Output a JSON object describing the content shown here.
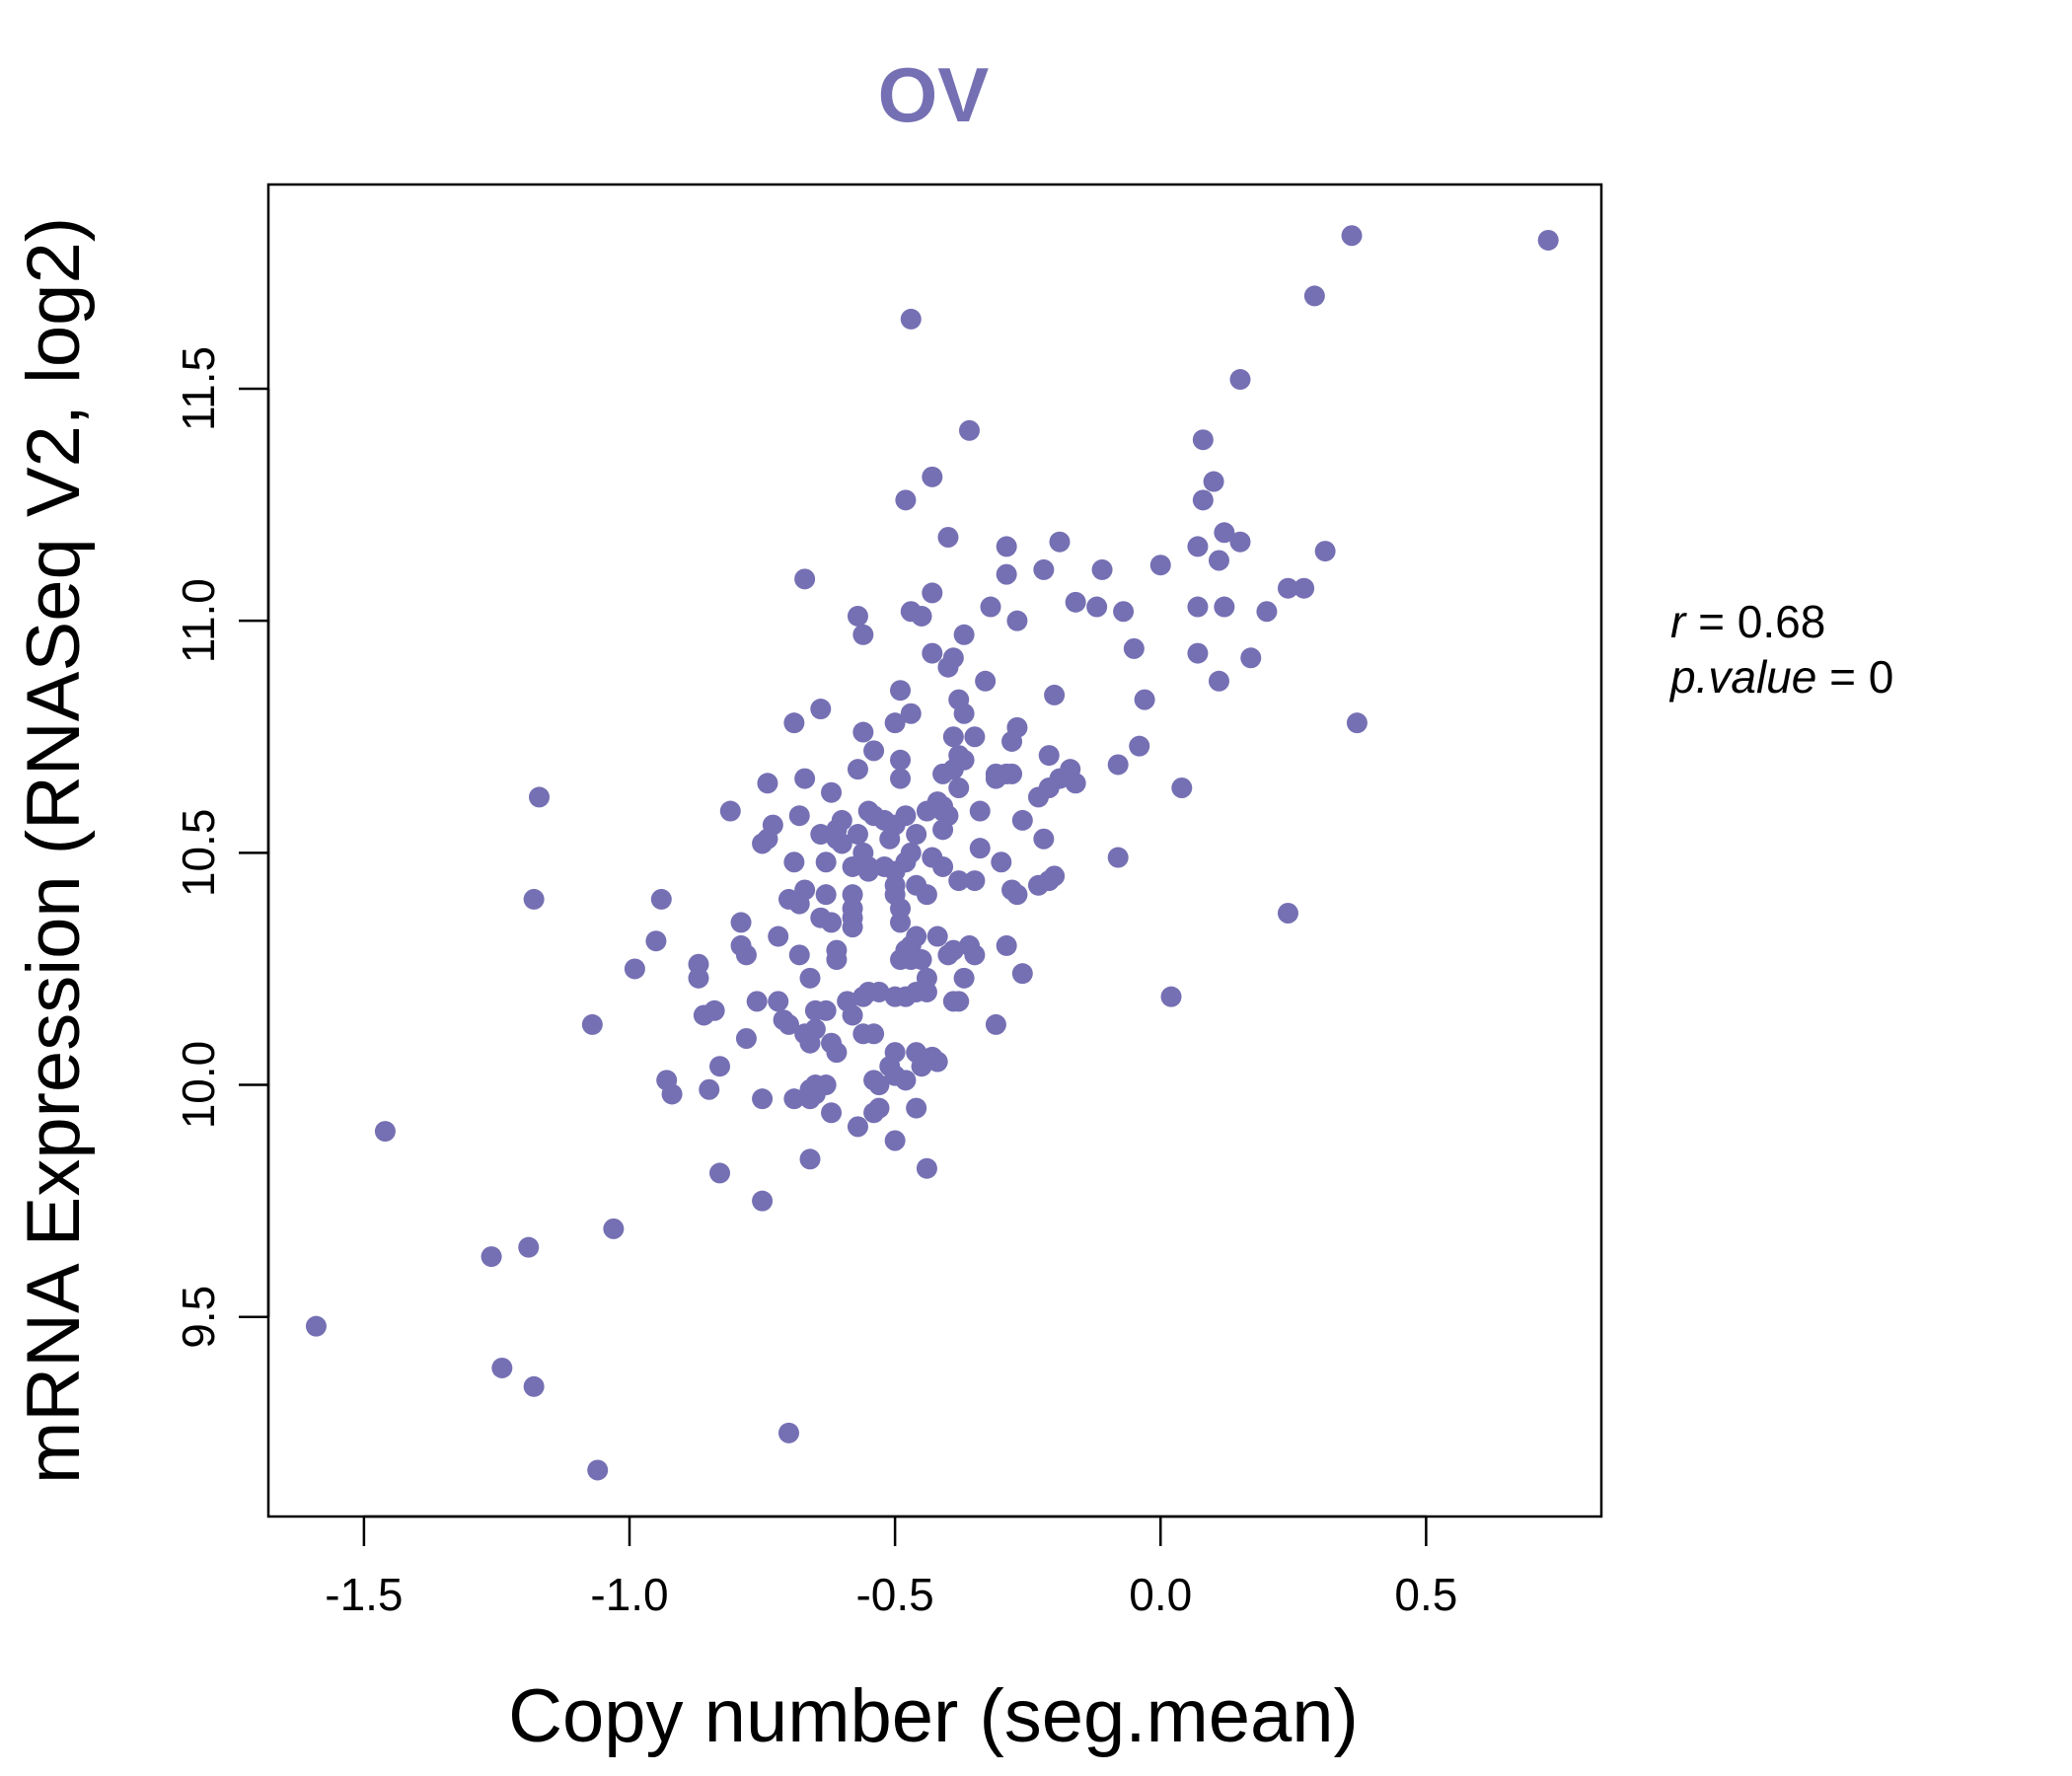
{
  "chart_data": {
    "type": "scatter",
    "title": "OV",
    "xlabel": "Copy number (seg.mean)",
    "ylabel": "mRNA Expression (RNASeq V2, log2)",
    "xlim": [
      -1.68,
      0.83
    ],
    "ylim": [
      9.07,
      11.94
    ],
    "xticks": [
      -1.5,
      -1.0,
      -0.5,
      0.0,
      0.5
    ],
    "xtick_labels": [
      "-1.5",
      "-1.0",
      "-0.5",
      "0.0",
      "0.5"
    ],
    "yticks": [
      9.5,
      10.0,
      10.5,
      11.0,
      11.5
    ],
    "ytick_labels": [
      "9.5",
      "10.0",
      "10.5",
      "11.0",
      "11.5"
    ],
    "point_color": "#7570b3",
    "grid": false,
    "annotation": {
      "r_label": "r",
      "r_value": "0.68",
      "p_label": "p.value",
      "p_value": "0"
    },
    "points": [
      [
        -1.59,
        9.48
      ],
      [
        -1.46,
        9.9
      ],
      [
        -1.26,
        9.63
      ],
      [
        -1.24,
        9.39
      ],
      [
        -1.19,
        9.65
      ],
      [
        -1.18,
        9.35
      ],
      [
        -1.18,
        10.4
      ],
      [
        -1.17,
        10.62
      ],
      [
        -1.06,
        9.17
      ],
      [
        -1.07,
        10.13
      ],
      [
        -1.03,
        9.69
      ],
      [
        -0.99,
        10.25
      ],
      [
        -0.95,
        10.31
      ],
      [
        -0.94,
        10.4
      ],
      [
        -0.93,
        10.01
      ],
      [
        -0.92,
        9.98
      ],
      [
        -0.87,
        10.26
      ],
      [
        -0.87,
        10.23
      ],
      [
        -0.86,
        10.15
      ],
      [
        -0.85,
        9.99
      ],
      [
        -0.84,
        10.16
      ],
      [
        -0.83,
        9.81
      ],
      [
        -0.83,
        10.04
      ],
      [
        -0.81,
        10.59
      ],
      [
        -0.79,
        10.35
      ],
      [
        -0.79,
        10.3
      ],
      [
        -0.78,
        10.28
      ],
      [
        -0.78,
        10.1
      ],
      [
        -0.76,
        10.18
      ],
      [
        -0.75,
        10.52
      ],
      [
        -0.75,
        9.97
      ],
      [
        -0.75,
        9.75
      ],
      [
        -0.74,
        10.53
      ],
      [
        -0.74,
        10.65
      ],
      [
        -0.73,
        10.56
      ],
      [
        -0.72,
        10.18
      ],
      [
        -0.72,
        10.32
      ],
      [
        -0.71,
        10.14
      ],
      [
        -0.7,
        10.4
      ],
      [
        -0.7,
        10.13
      ],
      [
        -0.7,
        9.25
      ],
      [
        -0.69,
        10.48
      ],
      [
        -0.69,
        10.78
      ],
      [
        -0.69,
        9.97
      ],
      [
        -0.68,
        10.39
      ],
      [
        -0.68,
        10.58
      ],
      [
        -0.68,
        10.28
      ],
      [
        -0.67,
        10.66
      ],
      [
        -0.67,
        10.42
      ],
      [
        -0.67,
        10.11
      ],
      [
        -0.67,
        11.09
      ],
      [
        -0.66,
        9.97
      ],
      [
        -0.66,
        9.99
      ],
      [
        -0.66,
        10.09
      ],
      [
        -0.66,
        10.23
      ],
      [
        -0.66,
        9.84
      ],
      [
        -0.65,
        10.0
      ],
      [
        -0.65,
        10.12
      ],
      [
        -0.65,
        10.16
      ],
      [
        -0.65,
        9.98
      ],
      [
        -0.64,
        10.81
      ],
      [
        -0.64,
        10.54
      ],
      [
        -0.64,
        10.36
      ],
      [
        -0.63,
        10.41
      ],
      [
        -0.63,
        10.16
      ],
      [
        -0.63,
        10.0
      ],
      [
        -0.63,
        10.48
      ],
      [
        -0.62,
        10.35
      ],
      [
        -0.62,
        10.09
      ],
      [
        -0.62,
        10.63
      ],
      [
        -0.62,
        9.94
      ],
      [
        -0.61,
        10.53
      ],
      [
        -0.61,
        10.55
      ],
      [
        -0.61,
        10.07
      ],
      [
        -0.61,
        10.29
      ],
      [
        -0.61,
        10.27
      ],
      [
        -0.6,
        10.57
      ],
      [
        -0.6,
        10.52
      ],
      [
        -0.59,
        10.18
      ],
      [
        -0.58,
        10.36
      ],
      [
        -0.58,
        10.41
      ],
      [
        -0.58,
        10.34
      ],
      [
        -0.58,
        10.15
      ],
      [
        -0.58,
        10.47
      ],
      [
        -0.58,
        10.38
      ],
      [
        -0.57,
        10.54
      ],
      [
        -0.57,
        9.91
      ],
      [
        -0.57,
        11.01
      ],
      [
        -0.57,
        10.68
      ],
      [
        -0.56,
        10.5
      ],
      [
        -0.56,
        10.19
      ],
      [
        -0.56,
        10.11
      ],
      [
        -0.56,
        10.76
      ],
      [
        -0.56,
        10.97
      ],
      [
        -0.55,
        10.47
      ],
      [
        -0.55,
        10.59
      ],
      [
        -0.55,
        10.2
      ],
      [
        -0.55,
        10.46
      ],
      [
        -0.54,
        10.72
      ],
      [
        -0.54,
        10.11
      ],
      [
        -0.54,
        10.01
      ],
      [
        -0.54,
        9.94
      ],
      [
        -0.54,
        10.58
      ],
      [
        -0.53,
        10.2
      ],
      [
        -0.53,
        9.95
      ],
      [
        -0.53,
        10.0
      ],
      [
        -0.52,
        10.57
      ],
      [
        -0.52,
        10.47
      ],
      [
        -0.51,
        10.53
      ],
      [
        -0.51,
        10.04
      ],
      [
        -0.5,
        10.07
      ],
      [
        -0.5,
        10.19
      ],
      [
        -0.5,
        10.43
      ],
      [
        -0.5,
        10.46
      ],
      [
        -0.5,
        10.78
      ],
      [
        -0.5,
        10.41
      ],
      [
        -0.5,
        9.88
      ],
      [
        -0.5,
        10.02
      ],
      [
        -0.5,
        10.56
      ],
      [
        -0.49,
        10.85
      ],
      [
        -0.49,
        10.38
      ],
      [
        -0.49,
        10.27
      ],
      [
        -0.49,
        10.35
      ],
      [
        -0.49,
        10.66
      ],
      [
        -0.49,
        10.7
      ],
      [
        -0.48,
        10.19
      ],
      [
        -0.48,
        10.48
      ],
      [
        -0.48,
        10.58
      ],
      [
        -0.48,
        11.26
      ],
      [
        -0.48,
        10.29
      ],
      [
        -0.48,
        10.01
      ],
      [
        -0.47,
        11.02
      ],
      [
        -0.47,
        11.65
      ],
      [
        -0.47,
        10.27
      ],
      [
        -0.47,
        10.5
      ],
      [
        -0.47,
        10.8
      ],
      [
        -0.47,
        10.3
      ],
      [
        -0.46,
        10.2
      ],
      [
        -0.46,
        10.54
      ],
      [
        -0.46,
        10.43
      ],
      [
        -0.46,
        10.32
      ],
      [
        -0.46,
        9.95
      ],
      [
        -0.46,
        10.07
      ],
      [
        -0.45,
        11.01
      ],
      [
        -0.45,
        10.27
      ],
      [
        -0.45,
        10.04
      ],
      [
        -0.44,
        10.23
      ],
      [
        -0.44,
        10.2
      ],
      [
        -0.44,
        10.41
      ],
      [
        -0.44,
        9.82
      ],
      [
        -0.44,
        10.59
      ],
      [
        -0.43,
        10.06
      ],
      [
        -0.43,
        10.49
      ],
      [
        -0.43,
        11.31
      ],
      [
        -0.43,
        10.93
      ],
      [
        -0.43,
        11.06
      ],
      [
        -0.42,
        10.05
      ],
      [
        -0.42,
        10.32
      ],
      [
        -0.42,
        10.61
      ],
      [
        -0.41,
        10.59
      ],
      [
        -0.41,
        10.47
      ],
      [
        -0.41,
        10.55
      ],
      [
        -0.41,
        10.67
      ],
      [
        -0.41,
        10.6
      ],
      [
        -0.4,
        10.9
      ],
      [
        -0.4,
        11.18
      ],
      [
        -0.4,
        10.28
      ],
      [
        -0.4,
        10.58
      ],
      [
        -0.39,
        10.92
      ],
      [
        -0.39,
        10.68
      ],
      [
        -0.39,
        10.75
      ],
      [
        -0.39,
        10.29
      ],
      [
        -0.39,
        10.18
      ],
      [
        -0.38,
        10.83
      ],
      [
        -0.38,
        10.71
      ],
      [
        -0.38,
        10.64
      ],
      [
        -0.38,
        10.44
      ],
      [
        -0.38,
        10.18
      ],
      [
        -0.37,
        10.8
      ],
      [
        -0.37,
        10.7
      ],
      [
        -0.37,
        10.97
      ],
      [
        -0.37,
        10.23
      ],
      [
        -0.36,
        10.3
      ],
      [
        -0.36,
        11.41
      ],
      [
        -0.35,
        10.75
      ],
      [
        -0.35,
        10.28
      ],
      [
        -0.35,
        10.44
      ],
      [
        -0.34,
        10.59
      ],
      [
        -0.34,
        10.51
      ],
      [
        -0.33,
        10.87
      ],
      [
        -0.32,
        11.03
      ],
      [
        -0.31,
        10.13
      ],
      [
        -0.31,
        10.66
      ],
      [
        -0.31,
        10.67
      ],
      [
        -0.3,
        10.48
      ],
      [
        -0.29,
        11.1
      ],
      [
        -0.29,
        10.67
      ],
      [
        -0.29,
        11.16
      ],
      [
        -0.29,
        10.3
      ],
      [
        -0.28,
        10.42
      ],
      [
        -0.28,
        10.74
      ],
      [
        -0.28,
        10.67
      ],
      [
        -0.27,
        10.41
      ],
      [
        -0.27,
        10.77
      ],
      [
        -0.27,
        11.0
      ],
      [
        -0.26,
        10.24
      ],
      [
        -0.26,
        10.57
      ],
      [
        -0.23,
        10.62
      ],
      [
        -0.23,
        10.43
      ],
      [
        -0.22,
        10.53
      ],
      [
        -0.22,
        11.11
      ],
      [
        -0.21,
        10.44
      ],
      [
        -0.21,
        10.71
      ],
      [
        -0.21,
        10.64
      ],
      [
        -0.2,
        10.84
      ],
      [
        -0.2,
        10.45
      ],
      [
        -0.19,
        11.17
      ],
      [
        -0.19,
        10.66
      ],
      [
        -0.17,
        10.68
      ],
      [
        -0.16,
        10.65
      ],
      [
        -0.16,
        11.04
      ],
      [
        -0.12,
        11.03
      ],
      [
        -0.11,
        11.11
      ],
      [
        -0.08,
        10.49
      ],
      [
        -0.08,
        10.69
      ],
      [
        -0.07,
        11.02
      ],
      [
        -0.05,
        10.94
      ],
      [
        -0.04,
        10.73
      ],
      [
        -0.03,
        10.83
      ],
      [
        0.0,
        11.12
      ],
      [
        0.02,
        10.19
      ],
      [
        0.04,
        10.64
      ],
      [
        0.07,
        11.03
      ],
      [
        0.07,
        11.16
      ],
      [
        0.07,
        10.93
      ],
      [
        0.08,
        11.39
      ],
      [
        0.08,
        11.26
      ],
      [
        0.1,
        11.3
      ],
      [
        0.11,
        11.13
      ],
      [
        0.11,
        10.87
      ],
      [
        0.12,
        11.19
      ],
      [
        0.12,
        11.03
      ],
      [
        0.15,
        11.52
      ],
      [
        0.15,
        11.17
      ],
      [
        0.17,
        10.92
      ],
      [
        0.2,
        11.02
      ],
      [
        0.24,
        11.07
      ],
      [
        0.24,
        10.37
      ],
      [
        0.27,
        11.07
      ],
      [
        0.29,
        11.7
      ],
      [
        0.31,
        11.15
      ],
      [
        0.36,
        11.83
      ],
      [
        0.37,
        10.78
      ],
      [
        0.73,
        11.82
      ]
    ]
  }
}
